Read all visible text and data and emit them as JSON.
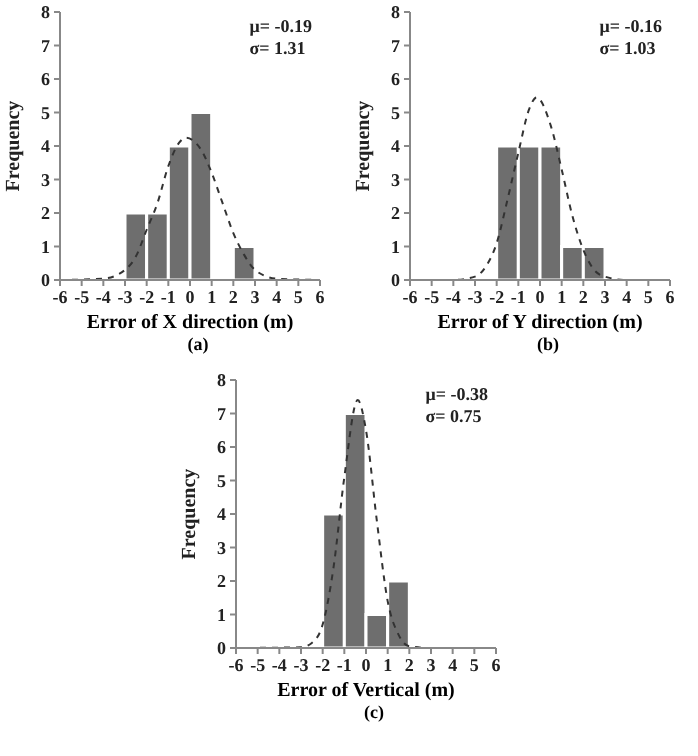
{
  "chart_data": [
    {
      "type": "histogram",
      "bins": [
        -3,
        -2,
        -1,
        0,
        1,
        2,
        3
      ],
      "values": [
        2,
        2,
        4,
        5,
        0,
        1
      ],
      "color": "#6e6e6e",
      "series": [
        {
          "type": "line",
          "color": "#333333",
          "line_style": "dashed",
          "x": [
            -6,
            -4,
            -3,
            -2.5,
            -2,
            -1.5,
            -1,
            -0.5,
            -0.2,
            0.5,
            1,
            1.5,
            2,
            2.5,
            3,
            4,
            6
          ],
          "values": [
            0,
            0.04,
            0.3,
            0.7,
            1.5,
            2.3,
            3.4,
            4.1,
            4.25,
            3.9,
            3.2,
            2.3,
            1.4,
            0.75,
            0.3,
            0.04,
            0
          ]
        }
      ],
      "xlabel": "Error of X direction (m)",
      "ylabel": "Frequency",
      "xlim": [
        -6,
        6
      ],
      "xticks": [
        -6,
        -5,
        -4,
        -3,
        -2,
        -1,
        0,
        1,
        2,
        3,
        4,
        5,
        6
      ],
      "ylim": [
        0,
        8
      ],
      "yticks": [
        0,
        1,
        2,
        3,
        4,
        5,
        6,
        7,
        8
      ],
      "marker": "none",
      "annotations": [
        "μ= -0.19",
        "σ= 1.31",
        "(a)"
      ]
    },
    {
      "type": "histogram",
      "bins": [
        -2,
        -1,
        0,
        1,
        2,
        3
      ],
      "values": [
        4,
        4,
        4,
        1,
        1
      ],
      "color": "#6e6e6e",
      "series": [
        {
          "type": "line",
          "color": "#333333",
          "line_style": "dashed",
          "x": [
            -6,
            -4,
            -3,
            -2.5,
            -2,
            -1.5,
            -1,
            -0.5,
            -0.16,
            0.5,
            1,
            1.5,
            2,
            2.5,
            3,
            4,
            6
          ],
          "values": [
            0,
            0,
            0.1,
            0.4,
            1.1,
            2.4,
            3.8,
            5.1,
            5.45,
            4.6,
            3.3,
            1.9,
            0.9,
            0.3,
            0.1,
            0,
            0
          ]
        }
      ],
      "xlabel": "Error of Y direction (m)",
      "ylabel": "Frequency",
      "xlim": [
        -6,
        6
      ],
      "xticks": [
        -6,
        -5,
        -4,
        -3,
        -2,
        -1,
        0,
        1,
        2,
        3,
        4,
        5,
        6
      ],
      "ylim": [
        0,
        8
      ],
      "yticks": [
        0,
        1,
        2,
        3,
        4,
        5,
        6,
        7,
        8
      ],
      "marker": "none",
      "annotations": [
        "μ= -0.16",
        "σ= 1.03",
        "(b)"
      ]
    },
    {
      "type": "histogram",
      "bins": [
        -2,
        -1,
        0,
        1,
        2
      ],
      "values": [
        4,
        7,
        1,
        2
      ],
      "color": "#6e6e6e",
      "series": [
        {
          "type": "line",
          "color": "#333333",
          "line_style": "dashed",
          "x": [
            -6,
            -3,
            -2.5,
            -2,
            -1.5,
            -1,
            -0.38,
            0,
            0.5,
            1,
            1.5,
            2,
            3,
            6
          ],
          "values": [
            0,
            0.02,
            0.15,
            0.7,
            2.4,
            5.1,
            7.4,
            6.5,
            3.8,
            1.4,
            0.4,
            0.05,
            0,
            0
          ]
        }
      ],
      "xlabel": "Error of Vertical (m)",
      "ylabel": "Frequency",
      "xlim": [
        -6,
        6
      ],
      "xticks": [
        -6,
        -5,
        -4,
        -3,
        -2,
        -1,
        0,
        1,
        2,
        3,
        4,
        5,
        6
      ],
      "ylim": [
        0,
        8
      ],
      "yticks": [
        0,
        1,
        2,
        3,
        4,
        5,
        6,
        7,
        8
      ],
      "marker": "none",
      "annotations": [
        "μ= -0.38",
        "σ= 0.75",
        "(c)"
      ]
    }
  ]
}
